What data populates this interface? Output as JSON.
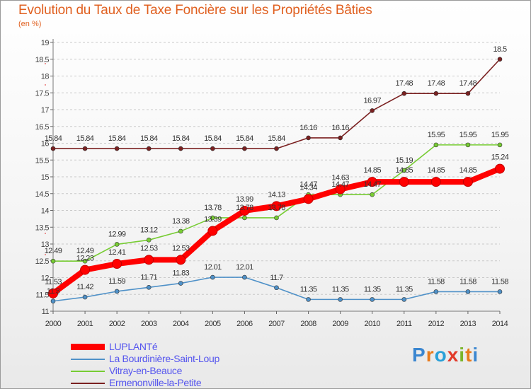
{
  "chart_data": {
    "type": "line",
    "title": "Evolution du Taux de Taxe Foncière sur les Propriétés Bâties",
    "subtitle": "(en %)",
    "x": [
      "2000",
      "2001",
      "2002",
      "2003",
      "2004",
      "2005",
      "2006",
      "2007",
      "2008",
      "2009",
      "2010",
      "2011",
      "2012",
      "2013",
      "2014"
    ],
    "ylim": [
      11,
      19
    ],
    "yticks": [
      11,
      11.5,
      12,
      12.5,
      13,
      13.5,
      14,
      14.5,
      15,
      15.5,
      16,
      16.5,
      17,
      17.5,
      18,
      18.5,
      19
    ],
    "grid": "horizontal dashed",
    "legend_position": "bottom-left",
    "series": [
      {
        "name": "LUPLANTé",
        "color": "#ff0000",
        "values": [
          11.53,
          12.23,
          12.41,
          12.53,
          12.53,
          13.39,
          13.99,
          14.13,
          14.34,
          14.63,
          14.85,
          14.85,
          14.85,
          14.85,
          15.24
        ],
        "labels": [
          "11.53",
          "12.23",
          "12.41",
          "12.53",
          "12.53",
          "13.39",
          "13.99",
          "14.13",
          "14.34",
          "14.63",
          "14.85",
          "14.85",
          "14.85",
          "14.85",
          "15.24"
        ]
      },
      {
        "name": "La Bourdinière-Saint-Loup",
        "color": "#4f91c8",
        "values": [
          11.3,
          11.42,
          11.59,
          11.71,
          11.83,
          12.01,
          12.01,
          11.7,
          11.35,
          11.35,
          11.35,
          11.35,
          11.58,
          11.58,
          11.58
        ],
        "labels": [
          "11.3",
          "11.42",
          "11.59",
          "11.71",
          "11.83",
          "12.01",
          "12.01",
          "11.7",
          "11.35",
          "11.35",
          "11.35",
          "11.35",
          "11.58",
          "11.58",
          "11.58"
        ]
      },
      {
        "name": "Vitray-en-Beauce",
        "color": "#77cc33",
        "values": [
          12.49,
          12.49,
          12.99,
          13.12,
          13.38,
          13.78,
          13.78,
          13.78,
          14.47,
          14.47,
          14.47,
          15.19,
          15.95,
          15.95,
          15.95
        ],
        "labels": [
          "12.49",
          "12.49",
          "12.99",
          "13.12",
          "13.38",
          "13.78",
          "13.78",
          "13.78",
          "14.47",
          "14.47",
          "14.47",
          "15.19",
          "15.95",
          "15.95",
          "15.95"
        ]
      },
      {
        "name": "Ermenonville-la-Petite",
        "color": "#7a2020",
        "values": [
          15.84,
          15.84,
          15.84,
          15.84,
          15.84,
          15.84,
          15.84,
          15.84,
          16.16,
          16.16,
          16.97,
          17.48,
          17.48,
          17.48,
          18.5
        ],
        "labels": [
          "15.84",
          "15.84",
          "15.84",
          "15.84",
          "15.84",
          "15.84",
          "15.84",
          "15.84",
          "16.16",
          "16.16",
          "16.97",
          "17.48",
          "17.48",
          "17.48",
          "18.5"
        ]
      }
    ]
  },
  "brand": {
    "letters": [
      "P",
      "r",
      "o",
      "x",
      "i",
      "t",
      "i"
    ],
    "colors": [
      "#3a86d0",
      "#e87b1c",
      "#2aa0d8",
      "#e23a2a",
      "#7ab52a",
      "#e87b1c",
      "#3a86d0"
    ]
  }
}
